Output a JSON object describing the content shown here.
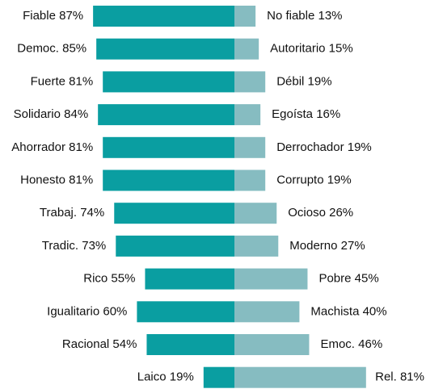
{
  "chart_data": {
    "type": "diverging_bar",
    "series": [
      {
        "color": "#0a9ea1",
        "values": [
          87,
          85,
          81,
          84,
          81,
          81,
          74,
          73,
          55,
          60,
          54,
          19
        ],
        "value_labels": [
          "Fiable 87%",
          "Democ. 85%",
          "Fuerte 81%",
          "Solidario 84%",
          "Ahorrador 81%",
          "Honesto 81%",
          "Trabaj. 74%",
          "Tradic. 73%",
          "Rico 55%",
          "Igualitario 60%",
          "Racional 54%",
          "Laico 19%"
        ]
      },
      {
        "color": "#86bcc1",
        "values": [
          13,
          15,
          19,
          16,
          19,
          19,
          26,
          27,
          45,
          40,
          46,
          81
        ],
        "value_labels": [
          "No fiable 13%",
          "Autoritario 15%",
          "Débil 19%",
          "Egoísta 16%",
          "Derrochador 19%",
          "Corrupto 19%",
          "Ocioso 26%",
          "Moderno 27%",
          "Pobre 45%",
          "Machista 40%",
          "Emoc. 46%",
          "Rel. 81%"
        ]
      }
    ]
  }
}
